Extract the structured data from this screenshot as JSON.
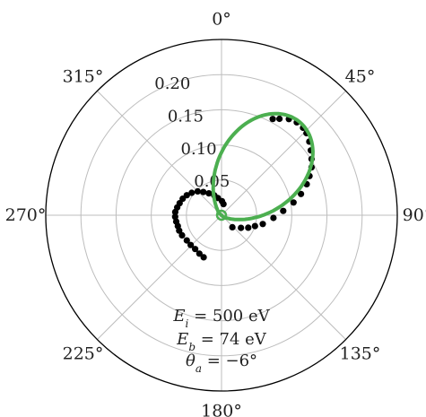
{
  "chart_data": {
    "type": "scatter",
    "projection": "polar",
    "zero_location": "top",
    "direction": "clockwise",
    "angular_ticks_deg": [
      0,
      45,
      90,
      135,
      180,
      225,
      270,
      315
    ],
    "angular_tick_labels": [
      "0°",
      "45°",
      "90°",
      "135°",
      "180°",
      "225°",
      "270°",
      "315°"
    ],
    "r_ticks": [
      0.05,
      0.1,
      0.15,
      0.2
    ],
    "r_tick_labels": [
      "0.05",
      "0.10",
      "0.15",
      "0.20"
    ],
    "rlim": [
      0,
      0.25
    ],
    "r_label_angle_deg": 338,
    "grid": true,
    "annotations": [
      "E_i = 500 eV",
      "E_b = 74 eV",
      "θ_a = −6°"
    ],
    "annotation_lines": [
      {
        "sym": "E",
        "sub": "i",
        "rest": " = 500 eV"
      },
      {
        "sym": "E",
        "sub": "b",
        "rest": " = 74 eV"
      },
      {
        "sym": "θ",
        "sub": "a",
        "rest": " = −6°"
      }
    ],
    "series": [
      {
        "style": "points",
        "color": "#000000",
        "points_theta_deg_r": [
          [
            28,
            0.155
          ],
          [
            31,
            0.16
          ],
          [
            35,
            0.167
          ],
          [
            39,
            0.17
          ],
          [
            43,
            0.17
          ],
          [
            46,
            0.168
          ],
          [
            50,
            0.163
          ],
          [
            54,
            0.157
          ],
          [
            58,
            0.151
          ],
          [
            62,
            0.145
          ],
          [
            66,
            0.137
          ],
          [
            70,
            0.129
          ],
          [
            75,
            0.117
          ],
          [
            80,
            0.104
          ],
          [
            86,
            0.088
          ],
          [
            93,
            0.074
          ],
          [
            102,
            0.06
          ],
          [
            108,
            0.05
          ],
          [
            115,
            0.042
          ],
          [
            123,
            0.033
          ],
          [
            138,
            0.023
          ],
          [
            203,
            0.065
          ],
          [
            210,
            0.063
          ],
          [
            218,
            0.061
          ],
          [
            226,
            0.061
          ],
          [
            234,
            0.061
          ],
          [
            243,
            0.063
          ],
          [
            250,
            0.064
          ],
          [
            256,
            0.064
          ],
          [
            262,
            0.065
          ],
          [
            268,
            0.066
          ],
          [
            274,
            0.066
          ],
          [
            280,
            0.064
          ],
          [
            286,
            0.062
          ],
          [
            293,
            0.06
          ],
          [
            300,
            0.057
          ],
          [
            307,
            0.053
          ],
          [
            315,
            0.048
          ],
          [
            322,
            0.042
          ],
          [
            330,
            0.036
          ],
          [
            340,
            0.03
          ],
          [
            348,
            0.025
          ],
          [
            2,
            0.02
          ],
          [
            10,
            0.016
          ]
        ]
      },
      {
        "style": "line",
        "color": "#4caf50",
        "lobe": {
          "center_deg": 40,
          "peak_r": 0.167,
          "exponent": 2.6,
          "inner_radius": 0.006
        }
      }
    ]
  }
}
